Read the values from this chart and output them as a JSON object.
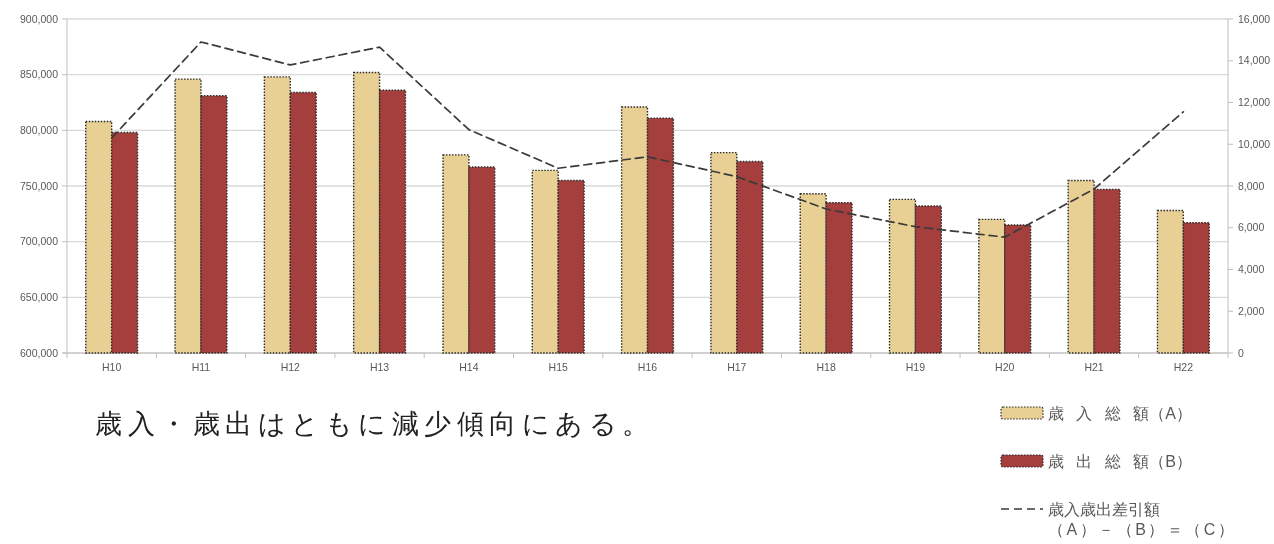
{
  "chart_data": {
    "type": "bar",
    "categories": [
      "H10",
      "H11",
      "H12",
      "H13",
      "H14",
      "H15",
      "H16",
      "H17",
      "H18",
      "H19",
      "H20",
      "H21",
      "H22"
    ],
    "series": [
      {
        "name": "歳 入 総 額（A）",
        "color": "#e8cf94",
        "values": [
          808000,
          846000,
          848000,
          852000,
          778000,
          764000,
          821000,
          780000,
          743000,
          738000,
          720000,
          755000,
          728000
        ]
      },
      {
        "name": "歳 出 総 額（B）",
        "color": "#a53f3d",
        "values": [
          798000,
          831000,
          834000,
          836000,
          767000,
          755000,
          811000,
          772000,
          735000,
          732000,
          715000,
          747000,
          717000
        ]
      },
      {
        "name": "歳入歳出差引額（A）－（B）＝（C）",
        "type": "line",
        "axis": "y2",
        "color": "#3a3a3a",
        "values": [
          10300,
          14900,
          13800,
          14650,
          10700,
          8850,
          9400,
          8450,
          6900,
          6050,
          5550,
          7850,
          11550
        ]
      }
    ],
    "ylim": [
      600000,
      900000
    ],
    "yticks": [
      {
        "value": 600000,
        "label": "600,000"
      },
      {
        "value": 650000,
        "label": "650,000"
      },
      {
        "value": 700000,
        "label": "700,000"
      },
      {
        "value": 750000,
        "label": "750,000"
      },
      {
        "value": 800000,
        "label": "800,000"
      },
      {
        "value": 850000,
        "label": "850,000"
      },
      {
        "value": 900000,
        "label": "900,000"
      }
    ],
    "y2lim": [
      0,
      16000
    ],
    "y2ticks": [
      0,
      {
        "value": 2000,
        "label": "2,000"
      },
      {
        "value": 4000,
        "label": "4,000"
      },
      {
        "value": 6000,
        "label": "6,000"
      },
      {
        "value": 8000,
        "label": "8,000"
      },
      {
        "value": 10000,
        "label": "10,000"
      },
      {
        "value": 12000,
        "label": "12,000"
      },
      {
        "value": 14000,
        "label": "14,000"
      },
      {
        "value": 16000,
        "label": "16,000"
      }
    ],
    "grid": "y",
    "legend": "bottom right",
    "line_style": "dashed",
    "annotations": [
      "歳入・歳出はともに減少傾向にある。"
    ]
  }
}
